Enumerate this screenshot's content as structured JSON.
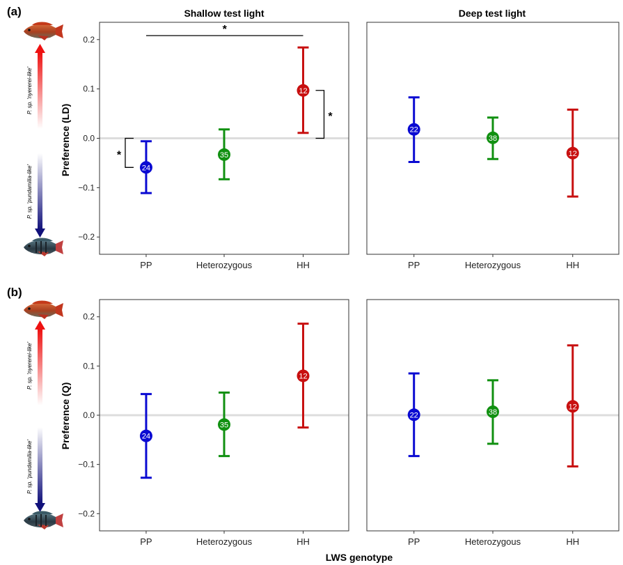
{
  "figure": {
    "x_axis_title": "LWS genotype",
    "column_titles": [
      "Shallow test light",
      "Deep test light"
    ],
    "arrow_labels": {
      "top": "P. sp. 'nyererei-like'",
      "bottom": "P. sp. 'pundamilia-like'"
    },
    "significance_marker": "*"
  },
  "colors": {
    "PP": "#0a0ad2",
    "Heterozygous": "#109010",
    "HH": "#c81010",
    "zero_line": "#dddddd",
    "arrow_top": "#ee1111",
    "arrow_bottom": "#10107a"
  },
  "chart_data": [
    {
      "type": "scatter",
      "panel": "(a)",
      "title": "Shallow test light",
      "xlabel": "",
      "ylabel": "Preference (LD)",
      "categories": [
        "PP",
        "Heterozygous",
        "HH"
      ],
      "ylim": [
        -0.235,
        0.235
      ],
      "yticks": [
        -0.2,
        -0.1,
        0.0,
        0.1,
        0.2
      ],
      "ytick_labels": [
        "−0.2",
        "−0.1",
        "0.0",
        "0.1",
        "0.2"
      ],
      "values": [
        -0.059,
        -0.033,
        0.097
      ],
      "lower": [
        -0.111,
        -0.083,
        0.011
      ],
      "upper": [
        -0.006,
        0.018,
        0.184
      ],
      "n": [
        "24",
        "35",
        "12"
      ],
      "significance": [
        {
          "type": "top",
          "between": [
            "PP",
            "HH"
          ],
          "y": 0.208,
          "label": "*"
        },
        {
          "type": "left",
          "category": "PP",
          "from": 0.0,
          "to": -0.059,
          "label": "*"
        },
        {
          "type": "right",
          "category": "HH",
          "from": 0.097,
          "to": 0.0,
          "label": "*"
        }
      ]
    },
    {
      "type": "scatter",
      "panel": "(a)",
      "title": "Deep test light",
      "xlabel": "",
      "ylabel": "",
      "categories": [
        "PP",
        "Heterozygous",
        "HH"
      ],
      "ylim": [
        -0.235,
        0.235
      ],
      "values": [
        0.018,
        0.001,
        -0.03
      ],
      "lower": [
        -0.048,
        -0.042,
        -0.118
      ],
      "upper": [
        0.083,
        0.042,
        0.058
      ],
      "n": [
        "22",
        "38",
        "12"
      ]
    },
    {
      "type": "scatter",
      "panel": "(b)",
      "title": "",
      "xlabel": "",
      "ylabel": "Preference (Q)",
      "categories": [
        "PP",
        "Heterozygous",
        "HH"
      ],
      "ylim": [
        -0.235,
        0.235
      ],
      "yticks": [
        -0.2,
        -0.1,
        0.0,
        0.1,
        0.2
      ],
      "ytick_labels": [
        "−0.2",
        "−0.1",
        "0.0",
        "0.1",
        "0.2"
      ],
      "values": [
        -0.042,
        -0.019,
        0.08
      ],
      "lower": [
        -0.127,
        -0.083,
        -0.025
      ],
      "upper": [
        0.043,
        0.046,
        0.186
      ],
      "n": [
        "24",
        "35",
        "12"
      ]
    },
    {
      "type": "scatter",
      "panel": "(b)",
      "title": "",
      "xlabel": "LWS genotype",
      "ylabel": "",
      "categories": [
        "PP",
        "Heterozygous",
        "HH"
      ],
      "ylim": [
        -0.235,
        0.235
      ],
      "values": [
        0.001,
        0.007,
        0.018
      ],
      "lower": [
        -0.083,
        -0.058,
        -0.104
      ],
      "upper": [
        0.085,
        0.071,
        0.142
      ],
      "n": [
        "22",
        "38",
        "12"
      ]
    }
  ]
}
